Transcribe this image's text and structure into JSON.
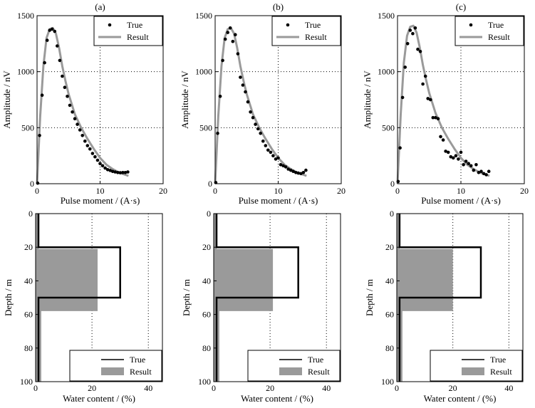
{
  "chart_data": [
    {
      "type": "line+scatter",
      "panel_label": "(a)",
      "xlabel": "Pulse moment / (A·s)",
      "ylabel": "Amplitude / nV",
      "xlim": [
        0,
        20
      ],
      "ylim": [
        0,
        1500
      ],
      "xticks": [
        "0",
        "10",
        "20"
      ],
      "yticks": [
        "0",
        "500",
        "1000",
        "1500"
      ],
      "grid": "dotted",
      "legend": {
        "placement": "top-right",
        "entries": [
          "True",
          "Result"
        ]
      },
      "series": [
        {
          "name": "True",
          "style": "points",
          "x": [
            0.1,
            0.4,
            0.8,
            1.2,
            1.6,
            2.0,
            2.4,
            2.8,
            3.2,
            3.6,
            4.0,
            4.4,
            4.8,
            5.2,
            5.6,
            6.0,
            6.4,
            6.8,
            7.2,
            7.6,
            8.0,
            8.4,
            8.8,
            9.2,
            9.6,
            10.0,
            10.4,
            10.8,
            11.2,
            11.6,
            12.0,
            12.4,
            12.8,
            13.2,
            13.6,
            14.0,
            14.4
          ],
          "y": [
            5,
            430,
            790,
            1080,
            1280,
            1370,
            1380,
            1360,
            1230,
            1100,
            960,
            860,
            780,
            700,
            640,
            580,
            530,
            480,
            430,
            380,
            340,
            310,
            270,
            240,
            210,
            180,
            160,
            140,
            125,
            118,
            110,
            105,
            100,
            98,
            100,
            100,
            105
          ]
        },
        {
          "name": "Result",
          "style": "line",
          "x": [
            0,
            0.5,
            1,
            1.5,
            2,
            2.5,
            3,
            3.5,
            4,
            4.5,
            5,
            6,
            7,
            8,
            9,
            10,
            11,
            12,
            13,
            14.5
          ],
          "y": [
            0,
            600,
            1050,
            1300,
            1380,
            1390,
            1340,
            1210,
            1050,
            920,
            800,
            620,
            500,
            400,
            310,
            230,
            170,
            130,
            100,
            70
          ]
        }
      ]
    },
    {
      "type": "line+scatter",
      "panel_label": "(b)",
      "xlabel": "Pulse moment / (A·s)",
      "ylabel": "Amplitude / nV",
      "xlim": [
        0,
        20
      ],
      "ylim": [
        0,
        1500
      ],
      "xticks": [
        "0",
        "10",
        "20"
      ],
      "yticks": [
        "0",
        "500",
        "1000",
        "1500"
      ],
      "grid": "dotted",
      "legend": {
        "placement": "top-right",
        "entries": [
          "True",
          "Result"
        ]
      },
      "series": [
        {
          "name": "True",
          "style": "points",
          "x": [
            0.1,
            0.4,
            0.8,
            1.2,
            1.6,
            2.0,
            2.4,
            2.8,
            3.2,
            3.6,
            4.0,
            4.4,
            4.8,
            5.2,
            5.6,
            6.0,
            6.4,
            6.8,
            7.2,
            7.6,
            8.0,
            8.4,
            8.8,
            9.2,
            9.6,
            10.0,
            10.4,
            10.8,
            11.2,
            11.6,
            12.0,
            12.4,
            12.8,
            13.2,
            13.6,
            14.0,
            14.4
          ],
          "y": [
            10,
            450,
            780,
            1100,
            1290,
            1350,
            1390,
            1270,
            1330,
            1160,
            950,
            880,
            820,
            730,
            640,
            590,
            530,
            490,
            450,
            380,
            340,
            300,
            280,
            250,
            220,
            230,
            170,
            160,
            150,
            130,
            120,
            110,
            100,
            95,
            90,
            100,
            120
          ]
        },
        {
          "name": "Result",
          "style": "line",
          "x": [
            0,
            0.5,
            1,
            1.5,
            2,
            2.5,
            3,
            3.5,
            4,
            4.5,
            5,
            6,
            7,
            8,
            9,
            10,
            11,
            12,
            13,
            14.5
          ],
          "y": [
            0,
            600,
            1050,
            1300,
            1380,
            1390,
            1340,
            1210,
            1050,
            920,
            800,
            620,
            500,
            400,
            310,
            230,
            170,
            130,
            100,
            70
          ]
        }
      ]
    },
    {
      "type": "line+scatter",
      "panel_label": "(c)",
      "xlabel": "Pulse moment / (A·s)",
      "ylabel": "Amplitude / nV",
      "xlim": [
        0,
        20
      ],
      "ylim": [
        0,
        1500
      ],
      "xticks": [
        "0",
        "10",
        "20"
      ],
      "yticks": [
        "0",
        "500",
        "1000",
        "1500"
      ],
      "grid": "dotted",
      "legend": {
        "placement": "top-right",
        "entries": [
          "True",
          "Result"
        ]
      },
      "series": [
        {
          "name": "True",
          "style": "points",
          "x": [
            0.1,
            0.4,
            0.8,
            1.2,
            1.6,
            2.0,
            2.4,
            2.8,
            3.2,
            3.6,
            4.0,
            4.4,
            4.8,
            5.2,
            5.6,
            6.0,
            6.4,
            6.8,
            7.2,
            7.6,
            8.0,
            8.4,
            8.8,
            9.2,
            9.6,
            10.0,
            10.4,
            10.8,
            11.2,
            11.6,
            12.0,
            12.4,
            12.8,
            13.2,
            13.6,
            14.0,
            14.4
          ],
          "y": [
            20,
            320,
            770,
            1040,
            1250,
            1370,
            1340,
            1390,
            1200,
            1180,
            890,
            960,
            760,
            750,
            590,
            590,
            580,
            420,
            390,
            290,
            280,
            240,
            230,
            250,
            220,
            280,
            170,
            200,
            180,
            160,
            120,
            170,
            100,
            110,
            90,
            80,
            110
          ]
        },
        {
          "name": "Result",
          "style": "line",
          "x": [
            0,
            0.5,
            1,
            1.5,
            2,
            2.5,
            3,
            3.5,
            4,
            4.5,
            5,
            6,
            7,
            8,
            9,
            10,
            11,
            12,
            13,
            14.5
          ],
          "y": [
            0,
            620,
            1080,
            1320,
            1400,
            1410,
            1350,
            1220,
            1060,
            930,
            810,
            630,
            500,
            400,
            310,
            230,
            170,
            130,
            100,
            70
          ]
        }
      ]
    },
    {
      "type": "step-area",
      "panel_label": "",
      "xlabel": "Water content / (%)",
      "ylabel": "Depth / m",
      "xlim": [
        0,
        45
      ],
      "ylim": [
        100,
        0
      ],
      "xticks": [
        "0",
        "20",
        "40"
      ],
      "yticks": [
        "0",
        "20",
        "40",
        "60",
        "80",
        "100"
      ],
      "grid": "dotted",
      "legend": {
        "placement": "bottom-right",
        "entries": [
          "True",
          "Result"
        ]
      },
      "true_profile": {
        "depth": [
          0,
          20,
          20,
          50,
          50,
          100
        ],
        "water": [
          1,
          1,
          30,
          30,
          1,
          1
        ]
      },
      "result_profile": {
        "depth": [
          0,
          21,
          21,
          58,
          58,
          100
        ],
        "water": [
          1,
          1,
          22,
          22,
          2,
          2
        ]
      }
    },
    {
      "type": "step-area",
      "panel_label": "",
      "xlabel": "Water content / (%)",
      "ylabel": "Depth / m",
      "xlim": [
        0,
        45
      ],
      "ylim": [
        100,
        0
      ],
      "xticks": [
        "0",
        "20",
        "40"
      ],
      "yticks": [
        "0",
        "20",
        "40",
        "60",
        "80",
        "100"
      ],
      "grid": "dotted",
      "legend": {
        "placement": "bottom-right",
        "entries": [
          "True",
          "Result"
        ]
      },
      "true_profile": {
        "depth": [
          0,
          20,
          20,
          50,
          50,
          100
        ],
        "water": [
          1,
          1,
          30,
          30,
          1,
          1
        ]
      },
      "result_profile": {
        "depth": [
          0,
          21,
          21,
          58,
          58,
          100
        ],
        "water": [
          1,
          1,
          21,
          21,
          2,
          2
        ]
      }
    },
    {
      "type": "step-area",
      "panel_label": "",
      "xlabel": "Water content / (%)",
      "ylabel": "Depth / m",
      "xlim": [
        0,
        45
      ],
      "ylim": [
        100,
        0
      ],
      "xticks": [
        "0",
        "20",
        "40"
      ],
      "yticks": [
        "0",
        "20",
        "40",
        "60",
        "80",
        "100"
      ],
      "grid": "dotted",
      "legend": {
        "placement": "bottom-right",
        "entries": [
          "True",
          "Result"
        ]
      },
      "true_profile": {
        "depth": [
          0,
          20,
          20,
          50,
          50,
          100
        ],
        "water": [
          1,
          1,
          30,
          30,
          1,
          1
        ]
      },
      "result_profile": {
        "depth": [
          0,
          21,
          21,
          58,
          58,
          100
        ],
        "water": [
          1,
          1,
          20,
          20,
          2,
          2
        ]
      }
    }
  ]
}
